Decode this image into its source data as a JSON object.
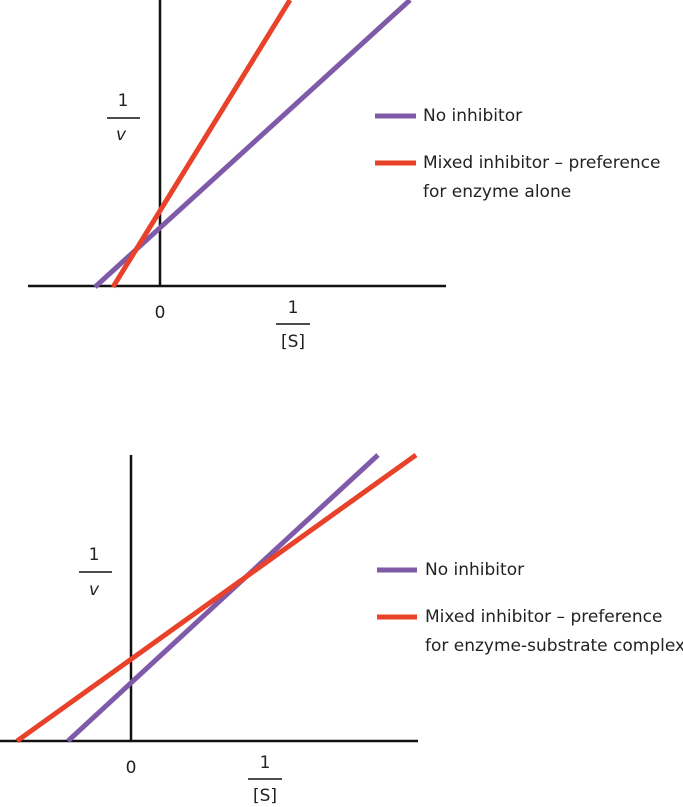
{
  "panels": [
    {
      "y_label": {
        "numerator": "1",
        "denominator": "v"
      },
      "origin": "0",
      "x_label": {
        "numerator": "1",
        "denominator": "[S]"
      },
      "legend": [
        {
          "lines": [
            "No inhibitor"
          ]
        },
        {
          "lines": [
            "Mixed inhibitor  – preference",
            "for enzyme alone"
          ]
        }
      ]
    },
    {
      "y_label": {
        "numerator": "1",
        "denominator": "v"
      },
      "origin": "0",
      "x_label": {
        "numerator": "1",
        "denominator": "[S]"
      },
      "legend": [
        {
          "lines": [
            "No inhibitor"
          ]
        },
        {
          "lines": [
            "Mixed inhibitor  – preference",
            "for enzyme-substrate complex"
          ]
        }
      ]
    }
  ]
}
